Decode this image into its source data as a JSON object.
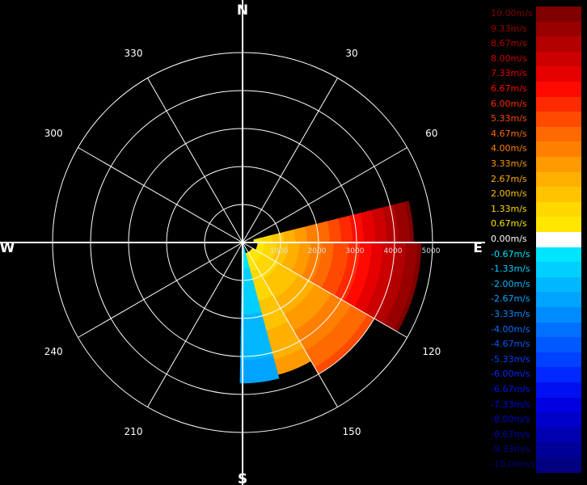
{
  "chart_data": {
    "type": "polar-heatmap",
    "compass": [
      "N",
      "E",
      "S",
      "W"
    ],
    "bearing_labels": [
      "30",
      "60",
      "120",
      "150",
      "210",
      "240",
      "300",
      "330"
    ],
    "range_rings": [
      1000,
      2000,
      3000,
      4000,
      5000
    ],
    "range_labels": [
      "1000",
      "2000",
      "3000",
      "4000",
      "5000"
    ],
    "colorbar": [
      {
        "label": "10.00m/s",
        "color": "#800000"
      },
      {
        "label": "9.33m/s",
        "color": "#990000"
      },
      {
        "label": "8.67m/s",
        "color": "#b30000"
      },
      {
        "label": "8.00m/s",
        "color": "#cc0000"
      },
      {
        "label": "7.33m/s",
        "color": "#e60000"
      },
      {
        "label": "6.67m/s",
        "color": "#ff0a00"
      },
      {
        "label": "6.00m/s",
        "color": "#ff2a00"
      },
      {
        "label": "5.33m/s",
        "color": "#ff4a00"
      },
      {
        "label": "4.67m/s",
        "color": "#ff6a00"
      },
      {
        "label": "4.00m/s",
        "color": "#ff8000"
      },
      {
        "label": "3.33m/s",
        "color": "#ff9a00"
      },
      {
        "label": "2.67m/s",
        "color": "#ffb000"
      },
      {
        "label": "2.00m/s",
        "color": "#ffc400"
      },
      {
        "label": "1.33m/s",
        "color": "#ffd800"
      },
      {
        "label": "0.67m/s",
        "color": "#ffe600"
      },
      {
        "label": "0.00m/s",
        "color": "#ffffff"
      },
      {
        "label": "-0.67m/s",
        "color": "#00e5ff"
      },
      {
        "label": "-1.33m/s",
        "color": "#00d0ff"
      },
      {
        "label": "-2.00m/s",
        "color": "#00b8ff"
      },
      {
        "label": "-2.67m/s",
        "color": "#00a4ff"
      },
      {
        "label": "-3.33m/s",
        "color": "#008cff"
      },
      {
        "label": "-4.00m/s",
        "color": "#0070ff"
      },
      {
        "label": "-4.67m/s",
        "color": "#0058ff"
      },
      {
        "label": "-5.33m/s",
        "color": "#0040ff"
      },
      {
        "label": "-6.00m/s",
        "color": "#0028ff"
      },
      {
        "label": "-6.67m/s",
        "color": "#0010f0"
      },
      {
        "label": "-7.33m/s",
        "color": "#0000e0"
      },
      {
        "label": "-8.00m/s",
        "color": "#0000c8"
      },
      {
        "label": "-8.67m/s",
        "color": "#0000b0"
      },
      {
        "label": "-9.33m/s",
        "color": "#000098"
      },
      {
        "label": "-10.00m/s",
        "color": "#000080"
      }
    ],
    "sectors": [
      {
        "az_from": 76,
        "az_to": 90,
        "range_from": 300,
        "range_to": 4500,
        "vel_from": 0.67,
        "vel_to": 10.0
      },
      {
        "az_from": 90,
        "az_to": 120,
        "range_from": 400,
        "range_to": 4700,
        "vel_from": 0.67,
        "vel_to": 10.0
      },
      {
        "az_from": 120,
        "az_to": 150,
        "range_from": 300,
        "range_to": 4000,
        "vel_from": 0.67,
        "vel_to": 5.33
      },
      {
        "az_from": 150,
        "az_to": 165,
        "range_from": 300,
        "range_to": 3600,
        "vel_from": 0.67,
        "vel_to": 3.33
      },
      {
        "az_from": 165,
        "az_to": 180,
        "range_from": 100,
        "range_to": 3700,
        "vel_from": -0.67,
        "vel_to": -2.67
      }
    ]
  }
}
